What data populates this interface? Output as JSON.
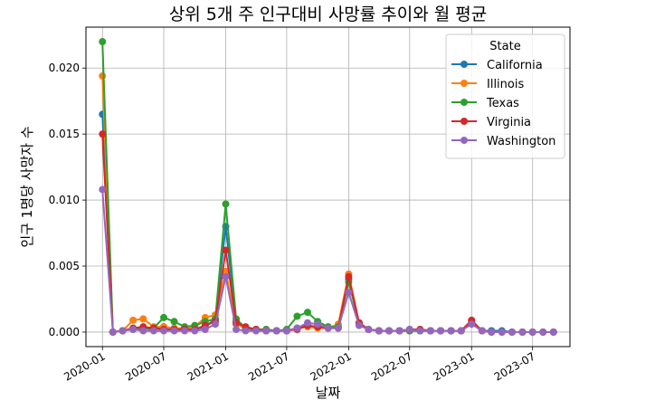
{
  "chart_data": {
    "type": "line",
    "title": "상위 5개 주 인구대비 사망률 추이와 월 평균",
    "xlabel": "날짜",
    "ylabel": "인구 1명당 사망자 수",
    "ylim": [
      -0.0011,
      0.0231
    ],
    "xlim": [
      "2019-11-13",
      "2023-10-20"
    ],
    "yticks": [
      0.0,
      0.005,
      0.01,
      0.015,
      0.02
    ],
    "ytick_labels": [
      "0.000",
      "0.005",
      "0.010",
      "0.015",
      "0.020"
    ],
    "xticks": [
      "2020-01-01",
      "2020-07-01",
      "2021-01-01",
      "2021-07-01",
      "2022-01-01",
      "2022-07-01",
      "2023-01-01",
      "2023-07-01"
    ],
    "xtick_labels": [
      "2020-01",
      "2020-07",
      "2021-01",
      "2021-07",
      "2022-01",
      "2022-07",
      "2023-01",
      "2023-07"
    ],
    "grid": true,
    "legend": {
      "title": "State",
      "placement": "top-right"
    },
    "x": [
      "2020-01-01",
      "2020-02-01",
      "2020-03-01",
      "2020-04-01",
      "2020-05-01",
      "2020-06-01",
      "2020-07-01",
      "2020-08-01",
      "2020-09-01",
      "2020-10-01",
      "2020-11-01",
      "2020-12-01",
      "2021-01-01",
      "2021-02-01",
      "2021-03-01",
      "2021-04-01",
      "2021-05-01",
      "2021-06-01",
      "2021-07-01",
      "2021-08-01",
      "2021-09-01",
      "2021-10-01",
      "2021-11-01",
      "2021-12-01",
      "2022-01-01",
      "2022-02-01",
      "2022-03-01",
      "2022-04-01",
      "2022-05-01",
      "2022-06-01",
      "2022-07-01",
      "2022-08-01",
      "2022-09-01",
      "2022-10-01",
      "2022-11-01",
      "2022-12-01",
      "2023-01-01",
      "2023-02-01",
      "2023-03-01",
      "2023-04-01",
      "2023-05-01",
      "2023-06-01",
      "2023-07-01",
      "2023-08-01",
      "2023-09-01"
    ],
    "series": [
      {
        "name": "California",
        "color": "#1f77b4",
        "values": [
          0.0165,
          0,
          0.0001,
          0.0003,
          0.0003,
          0.0002,
          0.0004,
          0.0003,
          0.0002,
          0.0002,
          0.0004,
          0.001,
          0.008,
          0.0008,
          0.0003,
          0.0002,
          0.0001,
          0.0001,
          0.0001,
          0.0003,
          0.0005,
          0.0004,
          0.0003,
          0.0004,
          0.004,
          0.0006,
          0.0002,
          0.0001,
          0.0001,
          0.0001,
          0.0001,
          0.0001,
          0.0001,
          0.0001,
          0.0001,
          0.0001,
          0.0008,
          0.0001,
          0.0001,
          0.0001,
          0,
          0,
          0,
          0,
          0
        ]
      },
      {
        "name": "Illinois",
        "color": "#ff7f0e",
        "values": [
          0.0194,
          0,
          0.0001,
          0.0009,
          0.001,
          0.0004,
          0.0004,
          0.0003,
          0.0003,
          0.0004,
          0.0011,
          0.0013,
          0.0046,
          0.0006,
          0.0003,
          0.0002,
          0.0002,
          0.0001,
          0.0001,
          0.0003,
          0.0004,
          0.0003,
          0.0003,
          0.0006,
          0.0044,
          0.0007,
          0.0002,
          0.0001,
          0.0001,
          0.0001,
          0.0001,
          0.0002,
          0.0001,
          0.0001,
          0.0001,
          0.0001,
          0.0007,
          0.0001,
          0,
          0,
          0,
          0,
          0,
          0,
          0
        ]
      },
      {
        "name": "Texas",
        "color": "#2ca02c",
        "values": [
          0.022,
          0,
          0.0001,
          0.0002,
          0.0003,
          0.0003,
          0.0011,
          0.0008,
          0.0004,
          0.0005,
          0.0008,
          0.001,
          0.0097,
          0.001,
          0.0003,
          0.0002,
          0.0002,
          0.0001,
          0.0002,
          0.0012,
          0.0015,
          0.0008,
          0.0004,
          0.0004,
          0.0038,
          0.0007,
          0.0002,
          0.0001,
          0.0001,
          0.0001,
          0.0001,
          0.0001,
          0.0001,
          0.0001,
          0.0001,
          0.0001,
          0.0007,
          0.0001,
          0,
          0,
          0,
          0,
          0,
          0,
          0
        ]
      },
      {
        "name": "Virginia",
        "color": "#d62728",
        "values": [
          0.015,
          0,
          0.0001,
          0.0003,
          0.0004,
          0.0003,
          0.0002,
          0.0002,
          0.0002,
          0.0002,
          0.0005,
          0.0008,
          0.0062,
          0.0007,
          0.0004,
          0.0002,
          0.0001,
          0.0001,
          0.0001,
          0.0002,
          0.0005,
          0.0004,
          0.0003,
          0.0003,
          0.0042,
          0.0007,
          0.0002,
          0.0001,
          0.0001,
          0.0001,
          0.0002,
          0.0002,
          0.0001,
          0.0001,
          0.0001,
          0.0001,
          0.0009,
          0.0001,
          0,
          0,
          0,
          0,
          0,
          0,
          0
        ]
      },
      {
        "name": "Washington",
        "color": "#9467bd",
        "values": [
          0.0108,
          0,
          0.0001,
          0.0002,
          0.0001,
          0.0001,
          0.0001,
          0.0001,
          0.0001,
          0.0001,
          0.0002,
          0.0006,
          0.0042,
          0.0002,
          0.0001,
          0.0001,
          0.0001,
          0.0001,
          0.0001,
          0.0003,
          0.0007,
          0.0006,
          0.0003,
          0.0003,
          0.003,
          0.0005,
          0.0002,
          0.0001,
          0.0001,
          0.0001,
          0.0002,
          0.0001,
          0.0001,
          0.0001,
          0.0001,
          0.0001,
          0.0006,
          0.0001,
          0,
          0,
          0,
          0,
          0,
          0,
          0
        ]
      }
    ]
  }
}
